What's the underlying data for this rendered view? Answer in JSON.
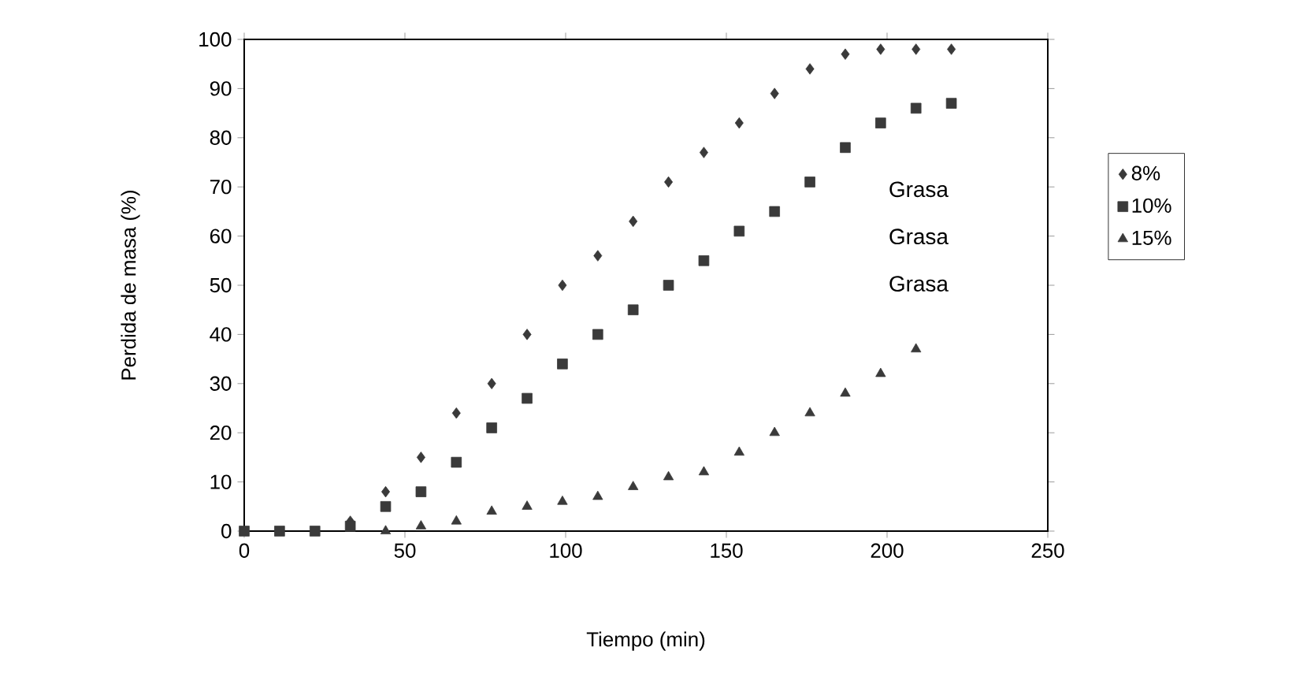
{
  "chart_data": {
    "type": "scatter",
    "xlabel": "Tiempo (min)",
    "ylabel": "Perdida de masa (%)",
    "x": [
      0,
      11,
      22,
      33,
      44,
      55,
      66,
      77,
      88,
      99,
      110,
      121,
      132,
      143,
      154,
      165,
      176,
      187,
      198,
      209,
      220
    ],
    "series": [
      {
        "name": "8%",
        "color": "#3a3a3a",
        "marker": "diamond",
        "values": [
          null,
          null,
          null,
          2,
          8,
          15,
          24,
          30,
          40,
          50,
          56,
          63,
          71,
          77,
          83,
          89,
          94,
          97,
          98,
          98,
          98
        ]
      },
      {
        "name": "10%",
        "color": "#3a3a3a",
        "marker": "square",
        "values": [
          0,
          0,
          0,
          1,
          5,
          8,
          14,
          21,
          27,
          34,
          40,
          45,
          50,
          55,
          61,
          65,
          71,
          78,
          83,
          86,
          87
        ]
      },
      {
        "name": "15%",
        "color": "#3a3a3a",
        "marker": "triangle",
        "values": [
          null,
          null,
          null,
          null,
          0,
          1,
          2,
          4,
          5,
          6,
          7,
          9,
          11,
          12,
          16,
          20,
          24,
          28,
          32,
          37,
          null
        ]
      }
    ],
    "annotations": [
      "Grasa",
      "Grasa",
      "Grasa"
    ],
    "xlim": [
      0,
      250
    ],
    "ylim": [
      0,
      100
    ],
    "xticks": [
      0,
      50,
      100,
      150,
      200,
      250
    ],
    "yticks": [
      0,
      10,
      20,
      30,
      40,
      50,
      60,
      70,
      80,
      90,
      100
    ],
    "grid": false,
    "legend": "right"
  }
}
